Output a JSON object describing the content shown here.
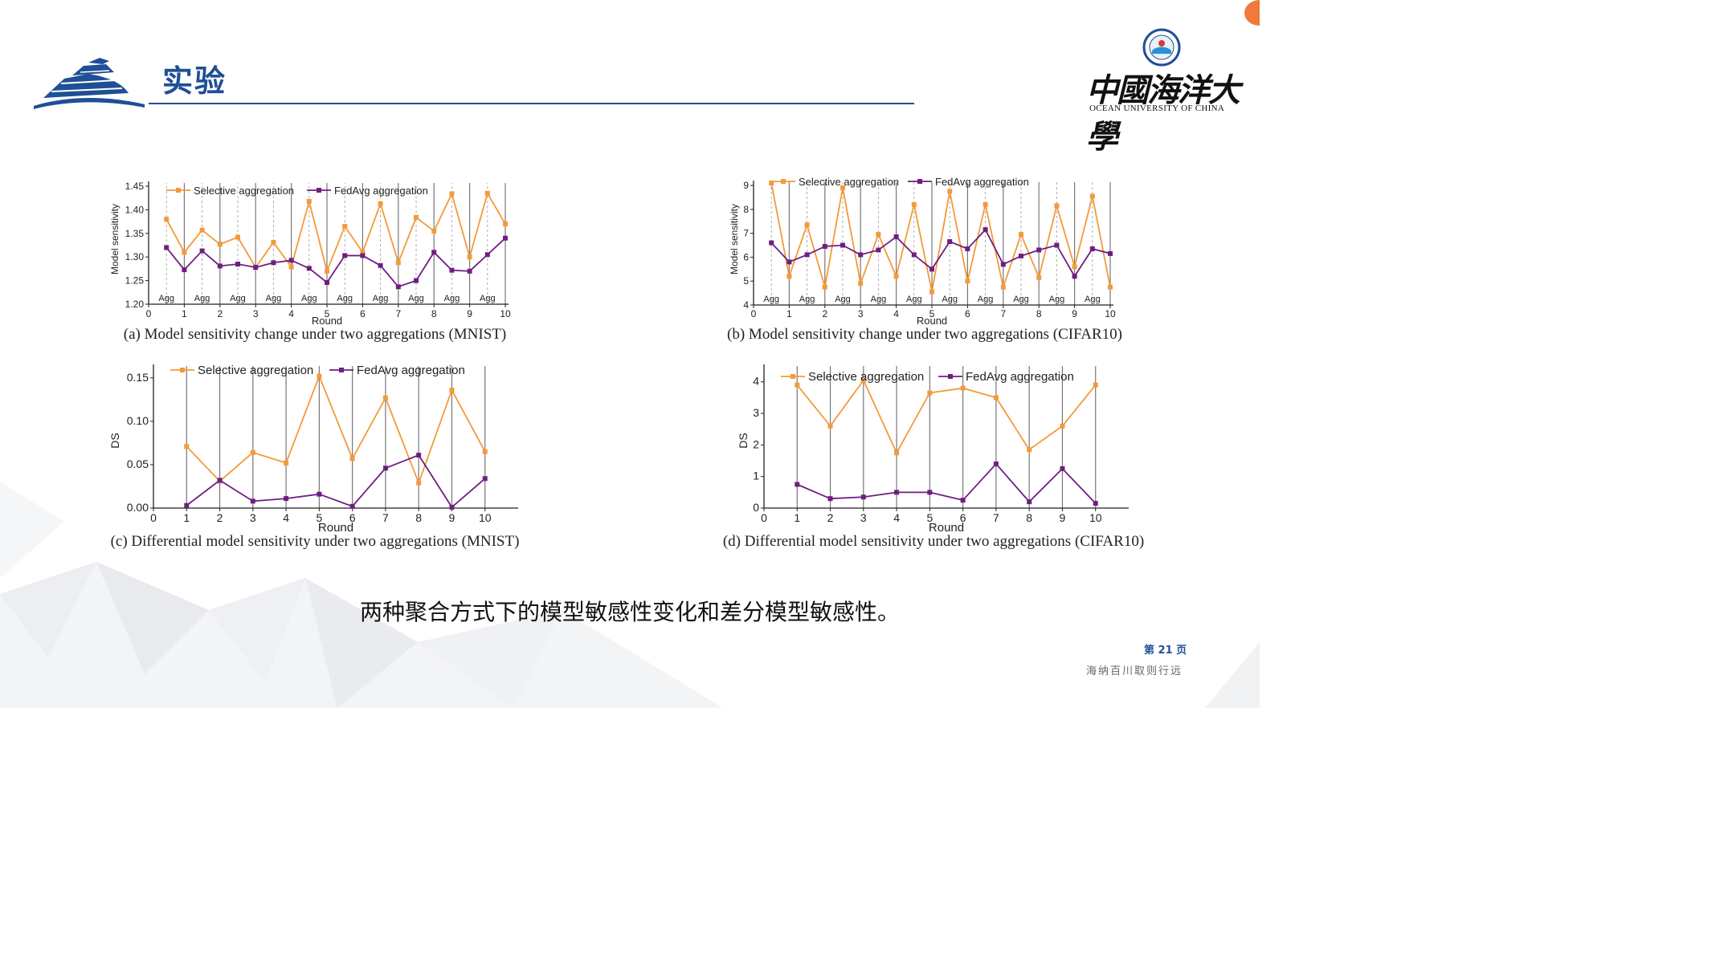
{
  "slide": {
    "title": "实验",
    "logo_cn": "中國海洋大學",
    "logo_en": "OCEAN UNIVERSITY OF CHINA",
    "caption": "两种聚合方式下的模型敏感性变化和差分模型敏感性。",
    "page_number": "第 21 页",
    "motto": "海纳百川取则行远",
    "colors": {
      "accent": "#1f4f95",
      "selective": "#f39a3a",
      "fedavg": "#6f1e80"
    }
  },
  "chart_data": [
    {
      "type": "line",
      "caption": "(a) Model sensitivity change under two aggregations (MNIST)",
      "xlabel": "Round",
      "ylabel": "Model sensitivity",
      "xlim": [
        0,
        10
      ],
      "ylim": [
        1.2,
        1.45
      ],
      "yticks": [
        "1.20",
        "1.25",
        "1.30",
        "1.35",
        "1.40",
        "1.45"
      ],
      "xticks": [
        "0",
        "1",
        "2",
        "3",
        "4",
        "5",
        "6",
        "7",
        "8",
        "9",
        "10"
      ],
      "agg_labels": [
        "Agg",
        "Agg",
        "Agg",
        "Agg",
        "Agg",
        "Agg",
        "Agg",
        "Agg",
        "Agg",
        "Agg"
      ],
      "legend": [
        "Selective aggregation",
        "FedAvg aggregation"
      ],
      "series": [
        {
          "name": "Selective aggregation",
          "x": [
            0.5,
            1,
            1.5,
            2,
            2.5,
            3,
            3.5,
            4,
            4.5,
            5,
            5.5,
            6,
            6.5,
            7,
            7.5,
            8,
            8.5,
            9,
            9.5,
            10
          ],
          "values": [
            1.38,
            1.31,
            1.357,
            1.327,
            1.342,
            1.278,
            1.331,
            1.279,
            1.418,
            1.27,
            1.365,
            1.31,
            1.413,
            1.288,
            1.384,
            1.355,
            1.434,
            1.3,
            1.435,
            1.37
          ]
        },
        {
          "name": "FedAvg aggregation",
          "x": [
            0.5,
            1,
            1.5,
            2,
            2.5,
            3,
            3.5,
            4,
            4.5,
            5,
            5.5,
            6,
            6.5,
            7,
            7.5,
            8,
            8.5,
            9,
            9.5,
            10
          ],
          "values": [
            1.32,
            1.273,
            1.313,
            1.281,
            1.285,
            1.278,
            1.288,
            1.293,
            1.276,
            1.246,
            1.303,
            1.303,
            1.282,
            1.237,
            1.25,
            1.31,
            1.272,
            1.27,
            1.305,
            1.34
          ]
        }
      ]
    },
    {
      "type": "line",
      "caption": "(b) Model sensitivity change under two aggregations (CIFAR10)",
      "xlabel": "Round",
      "ylabel": "Model sensitivity",
      "xlim": [
        0,
        10
      ],
      "ylim": [
        4,
        9
      ],
      "yticks": [
        "4",
        "5",
        "6",
        "7",
        "8",
        "9"
      ],
      "xticks": [
        "0",
        "1",
        "2",
        "3",
        "4",
        "5",
        "6",
        "7",
        "8",
        "9",
        "10"
      ],
      "agg_labels": [
        "Agg",
        "Agg",
        "Agg",
        "Agg",
        "Agg",
        "Agg",
        "Agg",
        "Agg",
        "Agg",
        "Agg"
      ],
      "legend": [
        "Selective aggregation",
        "FedAvg aggregation"
      ],
      "series": [
        {
          "name": "Selective aggregation",
          "x": [
            0.5,
            1,
            1.5,
            2,
            2.5,
            3,
            3.5,
            4,
            4.5,
            5,
            5.5,
            6,
            6.5,
            7,
            7.5,
            8,
            8.5,
            9,
            9.5,
            10
          ],
          "values": [
            9.1,
            5.2,
            7.35,
            4.75,
            8.9,
            4.9,
            6.95,
            5.2,
            8.2,
            4.55,
            8.75,
            5.0,
            8.2,
            4.75,
            6.95,
            5.15,
            8.15,
            5.6,
            8.55,
            4.75
          ]
        },
        {
          "name": "FedAvg aggregation",
          "x": [
            0.5,
            1,
            1.5,
            2,
            2.5,
            3,
            3.5,
            4,
            4.5,
            5,
            5.5,
            6,
            6.5,
            7,
            7.5,
            8,
            8.5,
            9,
            9.5,
            10
          ],
          "values": [
            6.6,
            5.8,
            6.1,
            6.45,
            6.5,
            6.1,
            6.3,
            6.85,
            6.1,
            5.5,
            6.65,
            6.35,
            7.15,
            5.7,
            6.05,
            6.3,
            6.5,
            5.2,
            6.35,
            6.15
          ]
        }
      ]
    },
    {
      "type": "line",
      "caption": "(c) Differential model sensitivity under two aggregations (MNIST)",
      "xlabel": "Round",
      "ylabel": "DS",
      "xlim": [
        0,
        11
      ],
      "ylim": [
        0,
        0.16
      ],
      "yticks": [
        "0.00",
        "0.05",
        "0.10",
        "0.15"
      ],
      "ytick_values": [
        0,
        0.05,
        0.1,
        0.15
      ],
      "xticks": [
        "0",
        "1",
        "2",
        "3",
        "4",
        "5",
        "6",
        "7",
        "8",
        "9",
        "10"
      ],
      "legend": [
        "Selective aggregation",
        "FedAvg aggregation"
      ],
      "series": [
        {
          "name": "Selective aggregation",
          "x": [
            1,
            2,
            3,
            4,
            5,
            6,
            7,
            8,
            9,
            10
          ],
          "values": [
            0.071,
            0.031,
            0.064,
            0.052,
            0.152,
            0.057,
            0.127,
            0.029,
            0.136,
            0.065
          ]
        },
        {
          "name": "FedAvg aggregation",
          "x": [
            1,
            2,
            3,
            4,
            5,
            6,
            7,
            8,
            9,
            10
          ],
          "values": [
            0.003,
            0.032,
            0.008,
            0.011,
            0.016,
            0.002,
            0.046,
            0.061,
            0.001,
            0.034
          ]
        }
      ]
    },
    {
      "type": "line",
      "caption": "(d) Differential model sensitivity under two aggregations (CIFAR10)",
      "xlabel": "Round",
      "ylabel": "DS",
      "xlim": [
        0,
        11
      ],
      "ylim": [
        0,
        4.4
      ],
      "yticks": [
        "0",
        "1",
        "2",
        "3",
        "4"
      ],
      "ytick_values": [
        0,
        1,
        2,
        3,
        4
      ],
      "xticks": [
        "0",
        "1",
        "2",
        "3",
        "4",
        "5",
        "6",
        "7",
        "8",
        "9",
        "10"
      ],
      "legend": [
        "Selective aggregation",
        "FedAvg aggregation"
      ],
      "series": [
        {
          "name": "Selective aggregation",
          "x": [
            1,
            2,
            3,
            4,
            5,
            6,
            7,
            8,
            9,
            10
          ],
          "values": [
            3.9,
            2.6,
            4.05,
            1.75,
            3.65,
            3.8,
            3.5,
            1.85,
            2.6,
            3.9
          ]
        },
        {
          "name": "FedAvg aggregation",
          "x": [
            1,
            2,
            3,
            4,
            5,
            6,
            7,
            8,
            9,
            10
          ],
          "values": [
            0.75,
            0.3,
            0.35,
            0.5,
            0.5,
            0.25,
            1.4,
            0.2,
            1.25,
            0.15
          ]
        }
      ]
    }
  ]
}
